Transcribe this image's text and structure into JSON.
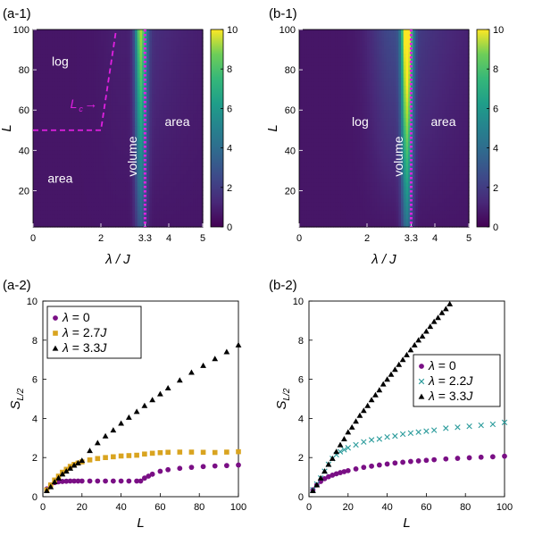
{
  "colors": {
    "viridis_low": "#440154",
    "viridis_high": "#fde725",
    "magenta_guide": "#e020e0",
    "purple_series": "#7a0f85",
    "gold_series": "#d9a420",
    "black_series": "#000000",
    "teal_series": "#2a9b9b"
  },
  "chart_data": [
    {
      "id": "a-1",
      "panel_label": "(a-1)",
      "type": "heatmap",
      "xlabel": "λ / J",
      "ylabel": "L",
      "xticks": [
        "0",
        "2",
        "3.3",
        "4",
        "5"
      ],
      "yticks": [
        "20",
        "40",
        "60",
        "80",
        "100"
      ],
      "xlim": [
        0,
        5
      ],
      "ylim": [
        2,
        100
      ],
      "colorbar": {
        "ticks": [
          "0",
          "2",
          "4",
          "6",
          "8",
          "10"
        ],
        "range": [
          0,
          10
        ]
      },
      "guides": {
        "dashed": [
          [
            2,
            50
          ],
          [
            2.45,
            100
          ]
        ],
        "dotted_x": 3.3,
        "lc_label": "L",
        "lc_sub": "c"
      },
      "annotations": [
        {
          "text": "log",
          "x": 0.8,
          "y": 82
        },
        {
          "text": "area",
          "x": 0.8,
          "y": 24
        },
        {
          "text": "area",
          "x": 4.25,
          "y": 52
        },
        {
          "text": "volume",
          "x": 3.05,
          "y": 37,
          "rotate": -90
        }
      ]
    },
    {
      "id": "b-1",
      "panel_label": "(b-1)",
      "type": "heatmap",
      "xlabel": "λ / J",
      "ylabel": "L",
      "xticks": [
        "0",
        "2",
        "3.3",
        "4",
        "5"
      ],
      "yticks": [
        "20",
        "40",
        "60",
        "80",
        "100"
      ],
      "xlim": [
        0,
        5
      ],
      "ylim": [
        2,
        100
      ],
      "colorbar": {
        "ticks": [
          "0",
          "2",
          "4",
          "6",
          "8",
          "10"
        ],
        "range": [
          0,
          10
        ]
      },
      "guides": {
        "dotted_x": 3.3
      },
      "annotations": [
        {
          "text": "log",
          "x": 1.8,
          "y": 52
        },
        {
          "text": "area",
          "x": 4.25,
          "y": 52
        },
        {
          "text": "volume",
          "x": 3.05,
          "y": 37,
          "rotate": -90
        }
      ]
    },
    {
      "id": "a-2",
      "panel_label": "(a-2)",
      "type": "scatter",
      "xlabel": "L",
      "ylabel": "S",
      "ylabel_sub": "L/2",
      "xlim": [
        0,
        100
      ],
      "ylim": [
        0,
        10
      ],
      "xticks": [
        "0",
        "20",
        "40",
        "60",
        "80",
        "100"
      ],
      "yticks": [
        "0",
        "2",
        "4",
        "6",
        "8",
        "10"
      ],
      "legend": {
        "placement": "top-left",
        "entries": [
          {
            "prefix": "λ",
            "text": " = 0",
            "color": "#7a0f85",
            "marker": "●"
          },
          {
            "prefix": "λ",
            "text": " = 2.7",
            "suffix": "J",
            "color": "#d9a420",
            "marker": "■"
          },
          {
            "prefix": "λ",
            "text": " = 3.3",
            "suffix": "J",
            "color": "#000000",
            "marker": "▲"
          }
        ]
      },
      "series": [
        {
          "name": "λ = 0",
          "marker": "circle",
          "color": "#7a0f85",
          "x": [
            2,
            4,
            6,
            8,
            10,
            12,
            14,
            16,
            18,
            20,
            24,
            28,
            32,
            36,
            40,
            44,
            48,
            50,
            52,
            54,
            56,
            60,
            64,
            70,
            76,
            82,
            88,
            94,
            100
          ],
          "y": [
            0.4,
            0.6,
            0.72,
            0.76,
            0.78,
            0.79,
            0.8,
            0.8,
            0.8,
            0.8,
            0.8,
            0.8,
            0.8,
            0.8,
            0.8,
            0.8,
            0.8,
            0.8,
            0.95,
            1.05,
            1.15,
            1.3,
            1.38,
            1.45,
            1.5,
            1.54,
            1.57,
            1.59,
            1.62
          ]
        },
        {
          "name": "λ = 2.7J",
          "marker": "square",
          "color": "#d9a420",
          "x": [
            2,
            4,
            6,
            8,
            10,
            12,
            14,
            16,
            18,
            20,
            24,
            28,
            32,
            36,
            40,
            44,
            48,
            52,
            56,
            60,
            64,
            70,
            76,
            82,
            88,
            94,
            100
          ],
          "y": [
            0.35,
            0.6,
            0.85,
            1.05,
            1.25,
            1.4,
            1.55,
            1.65,
            1.72,
            1.78,
            1.88,
            1.95,
            2.0,
            2.04,
            2.08,
            2.1,
            2.12,
            2.18,
            2.22,
            2.25,
            2.27,
            2.28,
            2.28,
            2.27,
            2.26,
            2.28,
            2.3
          ]
        },
        {
          "name": "λ = 3.3J",
          "marker": "triangle",
          "color": "#000000",
          "x": [
            2,
            4,
            6,
            8,
            10,
            12,
            14,
            16,
            18,
            20,
            24,
            28,
            32,
            36,
            40,
            44,
            48,
            52,
            56,
            60,
            64,
            70,
            76,
            82,
            88,
            94,
            100
          ],
          "y": [
            0.3,
            0.5,
            0.75,
            0.95,
            1.15,
            1.3,
            1.45,
            1.6,
            1.72,
            1.85,
            2.35,
            2.75,
            3.1,
            3.4,
            3.75,
            4.05,
            4.35,
            4.65,
            4.95,
            5.25,
            5.55,
            5.95,
            6.35,
            6.7,
            7.05,
            7.4,
            7.75
          ]
        }
      ]
    },
    {
      "id": "b-2",
      "panel_label": "(b-2)",
      "type": "scatter",
      "xlabel": "L",
      "ylabel": "S",
      "ylabel_sub": "L/2",
      "xlim": [
        0,
        100
      ],
      "ylim": [
        0,
        10
      ],
      "xticks": [
        "0",
        "20",
        "40",
        "60",
        "80",
        "100"
      ],
      "yticks": [
        "0",
        "2",
        "4",
        "6",
        "8",
        "10"
      ],
      "legend": {
        "placement": "center-right",
        "entries": [
          {
            "prefix": "λ",
            "text": " = 0",
            "color": "#7a0f85",
            "marker": "●"
          },
          {
            "prefix": "λ",
            "text": " = 2.2",
            "suffix": "J",
            "color": "#2a9b9b",
            "marker": "×"
          },
          {
            "prefix": "λ",
            "text": " = 3.3",
            "suffix": "J",
            "color": "#000000",
            "marker": "▲"
          }
        ]
      },
      "series": [
        {
          "name": "λ = 0",
          "marker": "circle",
          "color": "#7a0f85",
          "x": [
            2,
            4,
            6,
            8,
            10,
            12,
            14,
            16,
            18,
            20,
            24,
            28,
            32,
            36,
            40,
            44,
            48,
            52,
            56,
            60,
            64,
            70,
            76,
            82,
            88,
            94,
            100
          ],
          "y": [
            0.35,
            0.6,
            0.78,
            0.92,
            1.02,
            1.1,
            1.17,
            1.23,
            1.28,
            1.33,
            1.42,
            1.5,
            1.56,
            1.62,
            1.67,
            1.72,
            1.76,
            1.8,
            1.83,
            1.86,
            1.89,
            1.93,
            1.96,
            1.99,
            2.02,
            2.04,
            2.07
          ]
        },
        {
          "name": "λ = 2.2J",
          "marker": "cross",
          "color": "#2a9b9b",
          "x": [
            2,
            4,
            6,
            8,
            10,
            12,
            14,
            16,
            18,
            20,
            24,
            28,
            32,
            36,
            40,
            44,
            48,
            52,
            56,
            60,
            64,
            70,
            76,
            82,
            88,
            94,
            100
          ],
          "y": [
            0.35,
            0.65,
            0.95,
            1.3,
            1.65,
            1.95,
            2.15,
            2.3,
            2.4,
            2.5,
            2.65,
            2.8,
            2.9,
            2.95,
            3.05,
            3.1,
            3.2,
            3.25,
            3.3,
            3.35,
            3.4,
            3.5,
            3.55,
            3.6,
            3.65,
            3.7,
            3.8
          ]
        },
        {
          "name": "λ = 3.3J",
          "marker": "triangle",
          "color": "#000000",
          "x": [
            2,
            4,
            6,
            8,
            10,
            12,
            14,
            16,
            18,
            20,
            22,
            24,
            26,
            28,
            30,
            32,
            34,
            36,
            38,
            40,
            42,
            44,
            46,
            48,
            50,
            52,
            54,
            56,
            58,
            60,
            62,
            64,
            66,
            68,
            70,
            72
          ],
          "y": [
            0.3,
            0.6,
            0.95,
            1.3,
            1.65,
            1.95,
            2.3,
            2.65,
            2.95,
            3.3,
            3.55,
            3.85,
            4.15,
            4.4,
            4.65,
            4.95,
            5.2,
            5.45,
            5.75,
            6.0,
            6.25,
            6.5,
            6.75,
            7.0,
            7.25,
            7.5,
            7.75,
            8.0,
            8.2,
            8.45,
            8.7,
            8.95,
            9.15,
            9.4,
            9.6,
            9.85
          ]
        }
      ]
    }
  ]
}
